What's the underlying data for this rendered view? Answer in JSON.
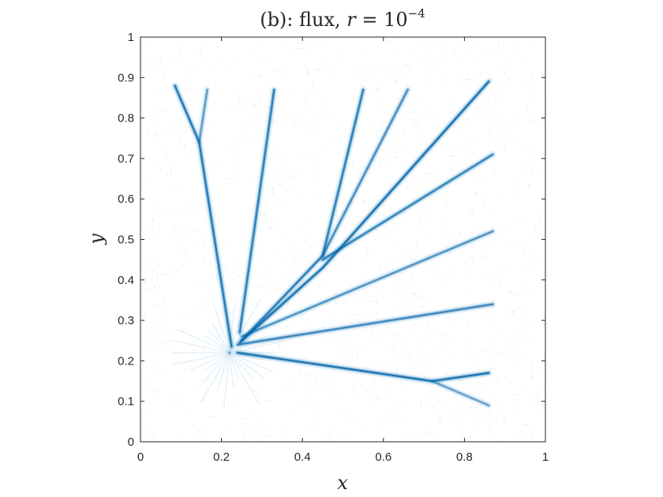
{
  "chart_data": {
    "type": "scatter",
    "title": "(b): flux, r = 10^-4",
    "title_parts": {
      "prefix": "(b): flux, ",
      "var": "r",
      "equals": " = 10",
      "exponent": "−4"
    },
    "xlabel": "x",
    "ylabel": "y",
    "xlim": [
      0,
      1
    ],
    "ylim": [
      0,
      1
    ],
    "xticks": [
      0,
      0.2,
      0.4,
      0.6,
      0.8,
      1
    ],
    "xtick_labels": [
      "0",
      "0.2",
      "0.4",
      "0.6",
      "0.8",
      "1"
    ],
    "yticks": [
      0,
      0.1,
      0.2,
      0.3,
      0.4,
      0.5,
      0.6,
      0.7,
      0.8,
      0.9,
      1
    ],
    "ytick_labels": [
      "0",
      "0.1",
      "0.2",
      "0.3",
      "0.4",
      "0.5",
      "0.6",
      "0.7",
      "0.8",
      "0.9",
      "1"
    ],
    "grid": false,
    "color": "#0072BD",
    "source_point": [
      0.22,
      0.22
    ],
    "channels": [
      {
        "points": [
          [
            0.225,
            0.235
          ],
          [
            0.145,
            0.74
          ],
          [
            0.085,
            0.88
          ]
        ],
        "intensity": 0.9
      },
      {
        "points": [
          [
            0.145,
            0.74
          ],
          [
            0.165,
            0.87
          ]
        ],
        "intensity": 0.6
      },
      {
        "points": [
          [
            0.245,
            0.27
          ],
          [
            0.33,
            0.87
          ]
        ],
        "intensity": 0.85
      },
      {
        "points": [
          [
            0.245,
            0.245
          ],
          [
            0.45,
            0.46
          ],
          [
            0.55,
            0.87
          ]
        ],
        "intensity": 0.85
      },
      {
        "points": [
          [
            0.45,
            0.46
          ],
          [
            0.66,
            0.87
          ]
        ],
        "intensity": 0.7
      },
      {
        "points": [
          [
            0.25,
            0.25
          ],
          [
            0.45,
            0.43
          ],
          [
            0.86,
            0.89
          ]
        ],
        "intensity": 0.95
      },
      {
        "points": [
          [
            0.45,
            0.45
          ],
          [
            0.87,
            0.71
          ]
        ],
        "intensity": 0.8
      },
      {
        "points": [
          [
            0.25,
            0.26
          ],
          [
            0.87,
            0.52
          ]
        ],
        "intensity": 0.65
      },
      {
        "points": [
          [
            0.24,
            0.24
          ],
          [
            0.87,
            0.34
          ]
        ],
        "intensity": 0.75
      },
      {
        "points": [
          [
            0.24,
            0.22
          ],
          [
            0.72,
            0.15
          ],
          [
            0.86,
            0.17
          ]
        ],
        "intensity": 0.95
      },
      {
        "points": [
          [
            0.72,
            0.15
          ],
          [
            0.86,
            0.09
          ]
        ],
        "intensity": 0.55
      }
    ]
  }
}
